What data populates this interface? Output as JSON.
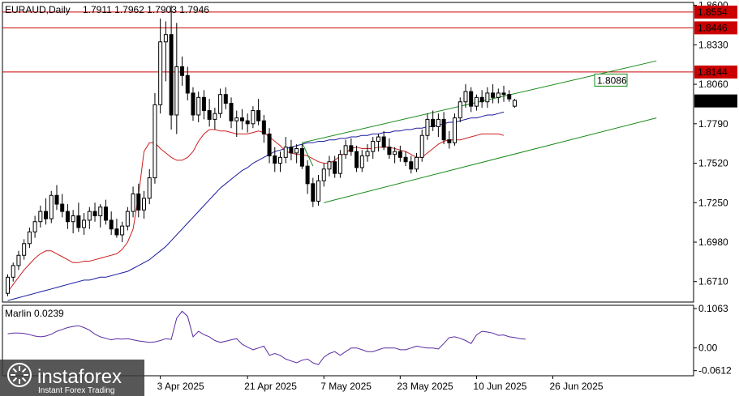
{
  "header": {
    "title": "EURAUD,Daily",
    "ohlc": "1.7911 1.7962 1.7903 1.7946"
  },
  "indicator": {
    "label": "Marlin 0.0239"
  },
  "watermark": {
    "brand": "instaforex",
    "tagline": "Instant Forex Trading"
  },
  "colors": {
    "up_candle": "#ffffff",
    "down_candle": "#000000",
    "resistance": "#cc0000",
    "channel": "#1a8a1a",
    "ma_slow": "#1a1aa0",
    "ma_fast": "#cc2020",
    "oscillator": "#5a2ba0"
  },
  "chart_data": [
    {
      "type": "candlestick",
      "symbol": "EURAUD",
      "timeframe": "Daily",
      "ylim": [
        1.657,
        1.862
      ],
      "y_ticks": [
        "1.8600",
        "1.8330",
        "1.8060",
        "1.7790",
        "1.7520",
        "1.7250",
        "1.6980",
        "1.6710"
      ],
      "x_ticks": [
        "3 Apr 2025",
        "21 Apr 2025",
        "7 May 2025",
        "23 May 2025",
        "10 Jun 2025",
        "26 Jun 2025"
      ],
      "x_tick_bar": [
        28,
        44,
        58,
        72,
        86,
        100
      ],
      "levels": [
        {
          "value": 1.8554,
          "label": "1.8554"
        },
        {
          "value": 1.8446,
          "label": "1.8446"
        },
        {
          "value": 1.8144,
          "label": "1.8144"
        }
      ],
      "channel_label": "1.8086",
      "current_price": "1.7946",
      "candles": [
        [
          1.663,
          1.676,
          1.661,
          1.674
        ],
        [
          1.674,
          1.684,
          1.671,
          1.682
        ],
        [
          1.682,
          1.692,
          1.679,
          1.689
        ],
        [
          1.689,
          1.7,
          1.686,
          1.697
        ],
        [
          1.697,
          1.708,
          1.694,
          1.705
        ],
        [
          1.705,
          1.716,
          1.701,
          1.712
        ],
        [
          1.712,
          1.723,
          1.708,
          1.719
        ],
        [
          1.719,
          1.728,
          1.71,
          1.714
        ],
        [
          1.714,
          1.733,
          1.711,
          1.73
        ],
        [
          1.73,
          1.737,
          1.72,
          1.724
        ],
        [
          1.724,
          1.731,
          1.715,
          1.719
        ],
        [
          1.719,
          1.724,
          1.707,
          1.712
        ],
        [
          1.712,
          1.72,
          1.704,
          1.716
        ],
        [
          1.716,
          1.725,
          1.705,
          1.708
        ],
        [
          1.708,
          1.718,
          1.703,
          1.713
        ],
        [
          1.713,
          1.722,
          1.707,
          1.719
        ],
        [
          1.719,
          1.725,
          1.712,
          1.716
        ],
        [
          1.716,
          1.724,
          1.708,
          1.722
        ],
        [
          1.722,
          1.727,
          1.71,
          1.713
        ],
        [
          1.713,
          1.719,
          1.703,
          1.707
        ],
        [
          1.707,
          1.714,
          1.701,
          1.703
        ],
        [
          1.703,
          1.712,
          1.698,
          1.709
        ],
        [
          1.709,
          1.722,
          1.706,
          1.719
        ],
        [
          1.719,
          1.736,
          1.715,
          1.731
        ],
        [
          1.731,
          1.738,
          1.715,
          1.72
        ],
        [
          1.72,
          1.733,
          1.714,
          1.728
        ],
        [
          1.728,
          1.748,
          1.724,
          1.742
        ],
        [
          1.742,
          1.8,
          1.738,
          1.792
        ],
        [
          1.792,
          1.851,
          1.786,
          1.835
        ],
        [
          1.835,
          1.849,
          1.808,
          1.84
        ],
        [
          1.84,
          1.86,
          1.775,
          1.785
        ],
        [
          1.785,
          1.848,
          1.772,
          1.818
        ],
        [
          1.818,
          1.825,
          1.805,
          1.812
        ],
        [
          1.812,
          1.818,
          1.795,
          1.8
        ],
        [
          1.8,
          1.804,
          1.781,
          1.785
        ],
        [
          1.785,
          1.801,
          1.78,
          1.797
        ],
        [
          1.797,
          1.802,
          1.782,
          1.788
        ],
        [
          1.788,
          1.796,
          1.777,
          1.782
        ],
        [
          1.782,
          1.79,
          1.775,
          1.786
        ],
        [
          1.786,
          1.803,
          1.783,
          1.799
        ],
        [
          1.799,
          1.804,
          1.789,
          1.793
        ],
        [
          1.793,
          1.797,
          1.776,
          1.781
        ],
        [
          1.781,
          1.788,
          1.77,
          1.783
        ],
        [
          1.783,
          1.789,
          1.775,
          1.781
        ],
        [
          1.781,
          1.786,
          1.773,
          1.779
        ],
        [
          1.779,
          1.791,
          1.776,
          1.788
        ],
        [
          1.788,
          1.796,
          1.778,
          1.781
        ],
        [
          1.781,
          1.785,
          1.766,
          1.772
        ],
        [
          1.772,
          1.776,
          1.752,
          1.757
        ],
        [
          1.757,
          1.763,
          1.746,
          1.752
        ],
        [
          1.752,
          1.76,
          1.746,
          1.756
        ],
        [
          1.756,
          1.77,
          1.752,
          1.763
        ],
        [
          1.763,
          1.768,
          1.754,
          1.759
        ],
        [
          1.759,
          1.765,
          1.752,
          1.762
        ],
        [
          1.762,
          1.765,
          1.748,
          1.75
        ],
        [
          1.75,
          1.754,
          1.731,
          1.738
        ],
        [
          1.738,
          1.742,
          1.722,
          1.726
        ],
        [
          1.726,
          1.744,
          1.723,
          1.74
        ],
        [
          1.74,
          1.752,
          1.736,
          1.748
        ],
        [
          1.748,
          1.757,
          1.743,
          1.753
        ],
        [
          1.753,
          1.757,
          1.742,
          1.745
        ],
        [
          1.745,
          1.761,
          1.742,
          1.758
        ],
        [
          1.758,
          1.768,
          1.755,
          1.764
        ],
        [
          1.764,
          1.769,
          1.757,
          1.76
        ],
        [
          1.76,
          1.764,
          1.746,
          1.749
        ],
        [
          1.749,
          1.761,
          1.746,
          1.757
        ],
        [
          1.757,
          1.765,
          1.753,
          1.76
        ],
        [
          1.76,
          1.77,
          1.755,
          1.767
        ],
        [
          1.767,
          1.772,
          1.76,
          1.77
        ],
        [
          1.77,
          1.774,
          1.761,
          1.763
        ],
        [
          1.763,
          1.769,
          1.755,
          1.758
        ],
        [
          1.758,
          1.763,
          1.752,
          1.76
        ],
        [
          1.76,
          1.764,
          1.753,
          1.756
        ],
        [
          1.756,
          1.76,
          1.75,
          1.753
        ],
        [
          1.753,
          1.757,
          1.745,
          1.748
        ],
        [
          1.748,
          1.759,
          1.746,
          1.756
        ],
        [
          1.756,
          1.775,
          1.753,
          1.771
        ],
        [
          1.771,
          1.786,
          1.768,
          1.782
        ],
        [
          1.782,
          1.788,
          1.774,
          1.777
        ],
        [
          1.777,
          1.786,
          1.77,
          1.782
        ],
        [
          1.782,
          1.787,
          1.765,
          1.768
        ],
        [
          1.768,
          1.774,
          1.762,
          1.766
        ],
        [
          1.766,
          1.786,
          1.764,
          1.783
        ],
        [
          1.783,
          1.797,
          1.78,
          1.794
        ],
        [
          1.794,
          1.806,
          1.79,
          1.801
        ],
        [
          1.801,
          1.804,
          1.787,
          1.791
        ],
        [
          1.791,
          1.799,
          1.788,
          1.797
        ],
        [
          1.797,
          1.802,
          1.79,
          1.794
        ],
        [
          1.794,
          1.804,
          1.79,
          1.8
        ],
        [
          1.8,
          1.806,
          1.793,
          1.797
        ],
        [
          1.797,
          1.803,
          1.793,
          1.8
        ],
        [
          1.8,
          1.805,
          1.794,
          1.799
        ],
        [
          1.799,
          1.802,
          1.794,
          1.796
        ],
        [
          1.791,
          1.796,
          1.79,
          1.795
        ]
      ],
      "ma_fast_values": [
        1.664,
        1.669,
        1.674,
        1.679,
        1.683,
        1.687,
        1.69,
        1.692,
        1.692,
        1.69,
        1.688,
        1.686,
        1.684,
        1.684,
        1.685,
        1.685,
        1.686,
        1.687,
        1.688,
        1.689,
        1.69,
        1.693,
        1.698,
        1.707,
        1.73,
        1.76,
        1.766,
        1.766,
        1.762,
        1.759,
        1.756,
        1.754,
        1.754,
        1.756,
        1.76,
        1.767,
        1.772,
        1.775,
        1.775,
        1.774,
        1.774,
        1.773,
        1.772,
        1.772,
        1.772,
        1.773,
        1.774,
        1.773,
        1.77,
        1.767,
        1.764,
        1.76,
        1.759,
        1.758,
        1.758,
        1.757,
        1.755,
        1.753,
        1.752,
        1.752,
        1.754,
        1.757,
        1.759,
        1.762,
        1.763,
        1.762,
        1.762,
        1.762,
        1.763,
        1.763,
        1.763,
        1.762,
        1.761,
        1.76,
        1.758,
        1.756,
        1.756,
        1.759,
        1.762,
        1.765,
        1.767,
        1.768,
        1.768,
        1.768,
        1.769,
        1.77,
        1.771,
        1.772,
        1.772,
        1.772,
        1.772,
        1.771
      ],
      "ma_slow_values": [
        1.658,
        1.659,
        1.66,
        1.661,
        1.662,
        1.663,
        1.664,
        1.665,
        1.666,
        1.667,
        1.668,
        1.669,
        1.67,
        1.671,
        1.672,
        1.672,
        1.673,
        1.674,
        1.674,
        1.675,
        1.676,
        1.677,
        1.678,
        1.68,
        1.682,
        1.684,
        1.686,
        1.689,
        1.692,
        1.695,
        1.699,
        1.703,
        1.707,
        1.711,
        1.715,
        1.719,
        1.723,
        1.727,
        1.731,
        1.735,
        1.738,
        1.741,
        1.744,
        1.747,
        1.749,
        1.752,
        1.754,
        1.756,
        1.758,
        1.76,
        1.761,
        1.762,
        1.763,
        1.764,
        1.765,
        1.766,
        1.766,
        1.767,
        1.767,
        1.768,
        1.768,
        1.769,
        1.769,
        1.77,
        1.77,
        1.771,
        1.771,
        1.772,
        1.772,
        1.773,
        1.773,
        1.774,
        1.774,
        1.775,
        1.775,
        1.776,
        1.776,
        1.777,
        1.777,
        1.778,
        1.779,
        1.78,
        1.78,
        1.781,
        1.782,
        1.783,
        1.783,
        1.784,
        1.785,
        1.785,
        1.786,
        1.787
      ],
      "channel": {
        "upper": [
          {
            "bar": 54,
            "value": 1.766
          },
          {
            "bar": 119,
            "value": 1.822
          }
        ],
        "lower": [
          {
            "bar": 58,
            "value": 1.725
          },
          {
            "bar": 119,
            "value": 1.783
          }
        ]
      }
    },
    {
      "type": "line",
      "name": "Marlin",
      "ylim": [
        -0.075,
        0.115
      ],
      "y_ticks": [
        "0.1063",
        "0.00",
        "-0.0612"
      ],
      "values": [
        0.038,
        0.04,
        0.04,
        0.039,
        0.036,
        0.032,
        0.03,
        0.032,
        0.037,
        0.045,
        0.05,
        0.055,
        0.058,
        0.06,
        0.055,
        0.048,
        0.037,
        0.03,
        0.026,
        0.022,
        0.025,
        0.024,
        0.025,
        0.022,
        0.019,
        0.017,
        0.015,
        0.016,
        0.02,
        0.025,
        0.023,
        0.08,
        0.099,
        0.085,
        0.03,
        0.045,
        0.036,
        0.03,
        0.02,
        0.015,
        0.018,
        0.022,
        0.025,
        0.01,
        0.002,
        -0.005,
        0.0,
        0.005,
        -0.02,
        -0.015,
        -0.02,
        -0.03,
        -0.035,
        -0.04,
        -0.033,
        -0.03,
        -0.04,
        -0.045,
        -0.025,
        -0.015,
        -0.01,
        -0.02,
        -0.01,
        0.0,
        0.0,
        -0.005,
        -0.01,
        -0.01,
        -0.005,
        0.0,
        0.0,
        0.0,
        -0.005,
        -0.005,
        0.0,
        0.005,
        0.002,
        0.0,
        0.0,
        -0.003,
        0.012,
        0.028,
        0.03,
        0.026,
        0.02,
        0.012,
        0.035,
        0.045,
        0.043,
        0.04,
        0.034,
        0.035,
        0.03,
        0.028,
        0.025,
        0.024
      ]
    }
  ]
}
